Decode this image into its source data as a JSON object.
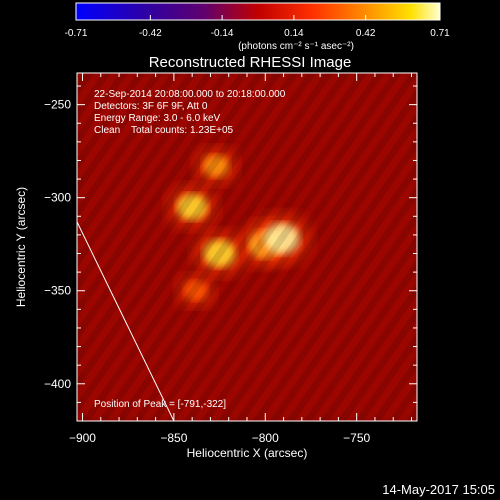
{
  "colorbar": {
    "ticks": [
      "-0.71",
      "-0.42",
      "-0.14",
      "0.14",
      "0.42",
      "0.71"
    ],
    "unit_label": "(photons cm⁻² s⁻¹ asec⁻²)"
  },
  "title": "Reconstructed RHESSI Image",
  "info": {
    "line1": "22-Sep-2014 20:08:00.000 to 20:18:00.000",
    "line2": "Detectors: 3F 6F 9F, Att 0",
    "line3": "Energy Range: 3.0 - 6.0 keV",
    "line4": "Clean    Total counts: 1.23E+05"
  },
  "peak_label": "Position of Peak = [-791,-322]",
  "footer_date": "14-May-2017 15:05",
  "chart_data": {
    "type": "heatmap",
    "title": "Reconstructed RHESSI Image",
    "xlabel": "Heliocentric X (arcsec)",
    "ylabel": "Heliocentric Y (arcsec)",
    "xlim": [
      -903,
      -717
    ],
    "ylim": [
      -420,
      -233
    ],
    "x_ticks": [
      -900,
      -850,
      -800,
      -750
    ],
    "y_ticks": [
      -250,
      -300,
      -350,
      -400
    ],
    "color_range": [
      -0.71,
      0.71
    ],
    "colormap": "rainbow (blue-purple-red-orange-yellow-white)",
    "peak_position": [
      -791,
      -322
    ],
    "sources": [
      {
        "x": -840,
        "y": -305,
        "intensity": 0.55
      },
      {
        "x": -825,
        "y": -330,
        "intensity": 0.6
      },
      {
        "x": -800,
        "y": -325,
        "intensity": 0.6
      },
      {
        "x": -791,
        "y": -322,
        "intensity": 0.71
      },
      {
        "x": -827,
        "y": -283,
        "intensity": 0.4
      },
      {
        "x": -838,
        "y": -350,
        "intensity": 0.3
      }
    ],
    "limb_line": [
      [
        -903,
        -313
      ],
      [
        -850,
        -420
      ]
    ]
  }
}
